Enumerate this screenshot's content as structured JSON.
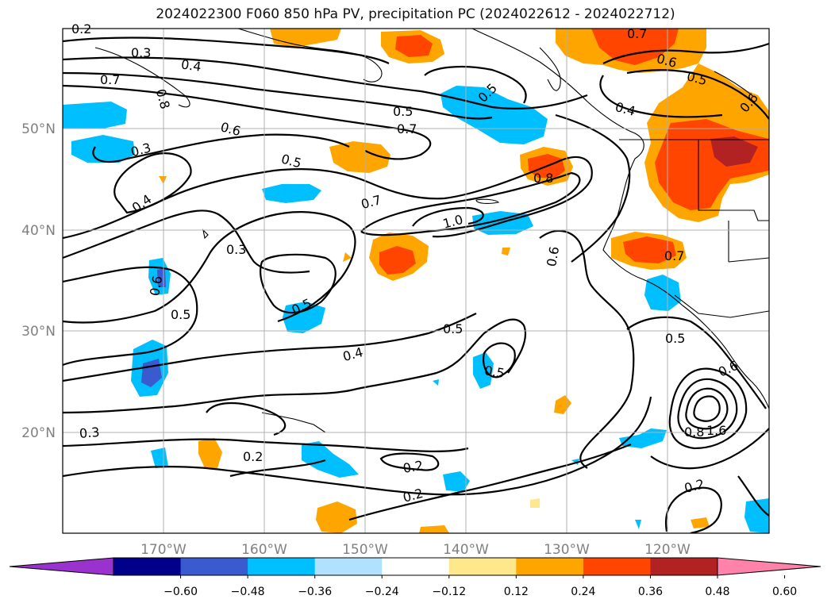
{
  "title": "2024022300 F060 850 hPa PV, precipitation PC (2024022612 - 2024022712)",
  "map": {
    "longitude_labels": [
      "170°W",
      "160°W",
      "150°W",
      "140°W",
      "130°W",
      "120°W"
    ],
    "latitude_labels": [
      "50°N",
      "40°N",
      "30°N",
      "20°N"
    ],
    "grid": true
  },
  "pv_contour_labels": [
    "0.2",
    "0.3",
    "0.4",
    "0.7",
    "0.8",
    "0.6",
    "0.5",
    "0.5",
    "0.7",
    "0.6",
    "0.5",
    "0.4",
    "0.7",
    "0.8",
    "1.0",
    "0.6",
    "0.6",
    "0.5",
    "0.4",
    "0.5",
    "0.3",
    "0.2",
    "0.2",
    "0.2",
    "0.3",
    "0.7",
    "0.6",
    "0.5",
    "0.4",
    "0.6",
    "0.7",
    "0.5",
    "0.5",
    "0.8",
    "1.6",
    "0.2",
    "0.3",
    "0.5"
  ],
  "colorbar": {
    "ticks": [
      "−0.60",
      "−0.48",
      "−0.36",
      "−0.24",
      "−0.12",
      "0.12",
      "0.24",
      "0.36",
      "0.48",
      "0.60"
    ],
    "colors": [
      "#9a32cd",
      "#00008b",
      "#3a5bd0",
      "#00bfff",
      "#b0e2ff",
      "#ffffff",
      "#ffe88c",
      "#ffa500",
      "#ff4500",
      "#b22222",
      "#ff82ab"
    ]
  }
}
